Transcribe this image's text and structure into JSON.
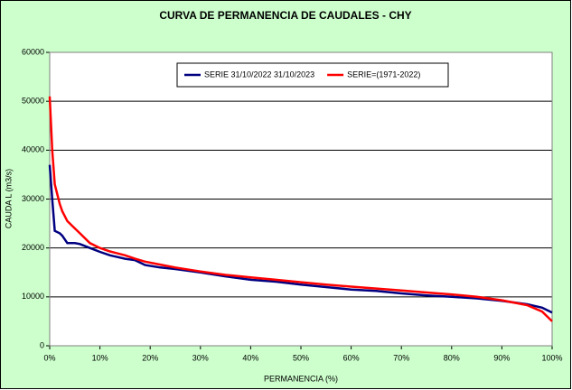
{
  "chart_data": {
    "type": "line",
    "title": "CURVA DE PERMANENCIA DE CAUDALES - CHY",
    "x_label": "PERMANENCIA (%)",
    "y_label": "CAUDA L (m3/s)",
    "x": [
      0,
      0.5,
      1,
      2,
      2.5,
      3.5,
      5,
      6,
      8,
      10,
      12,
      15,
      17,
      19,
      22,
      25,
      30,
      35,
      40,
      45,
      50,
      55,
      60,
      65,
      70,
      75,
      80,
      85,
      90,
      95,
      98,
      100
    ],
    "series": [
      {
        "name": "SERIE 31/10/2022 31/10/2023",
        "color": "#000080",
        "values": [
          37000,
          30000,
          23500,
          23000,
          22500,
          21000,
          21000,
          20800,
          20000,
          19200,
          18500,
          17800,
          17500,
          16500,
          16000,
          15700,
          15000,
          14200,
          13500,
          13100,
          12500,
          12000,
          11500,
          11200,
          10700,
          10300,
          10000,
          9700,
          9200,
          8500,
          7800,
          6800
        ]
      },
      {
        "name": "SERIE=(1971-2022)",
        "color": "#ff0000",
        "values": [
          51000,
          40000,
          33000,
          29000,
          27500,
          25500,
          24000,
          23000,
          21000,
          20000,
          19300,
          18500,
          17800,
          17200,
          16600,
          16000,
          15200,
          14500,
          14000,
          13500,
          13000,
          12500,
          12100,
          11700,
          11300,
          10900,
          10500,
          10000,
          9300,
          8300,
          7000,
          5000
        ]
      }
    ],
    "xlim": [
      0,
      100
    ],
    "xticks": [
      {
        "value": 0,
        "label": "0%"
      },
      {
        "value": 10,
        "label": "10%"
      },
      {
        "value": 20,
        "label": "20%"
      },
      {
        "value": 30,
        "label": "30%"
      },
      {
        "value": 40,
        "label": "40%"
      },
      {
        "value": 50,
        "label": "50%"
      },
      {
        "value": 60,
        "label": "60%"
      },
      {
        "value": 70,
        "label": "70%"
      },
      {
        "value": 80,
        "label": "80%"
      },
      {
        "value": 90,
        "label": "90%"
      },
      {
        "value": 100,
        "label": "100%"
      }
    ],
    "ylim": [
      0,
      60000
    ],
    "yticks": [
      0,
      10000,
      20000,
      30000,
      40000,
      50000,
      60000
    ],
    "grid": true
  }
}
